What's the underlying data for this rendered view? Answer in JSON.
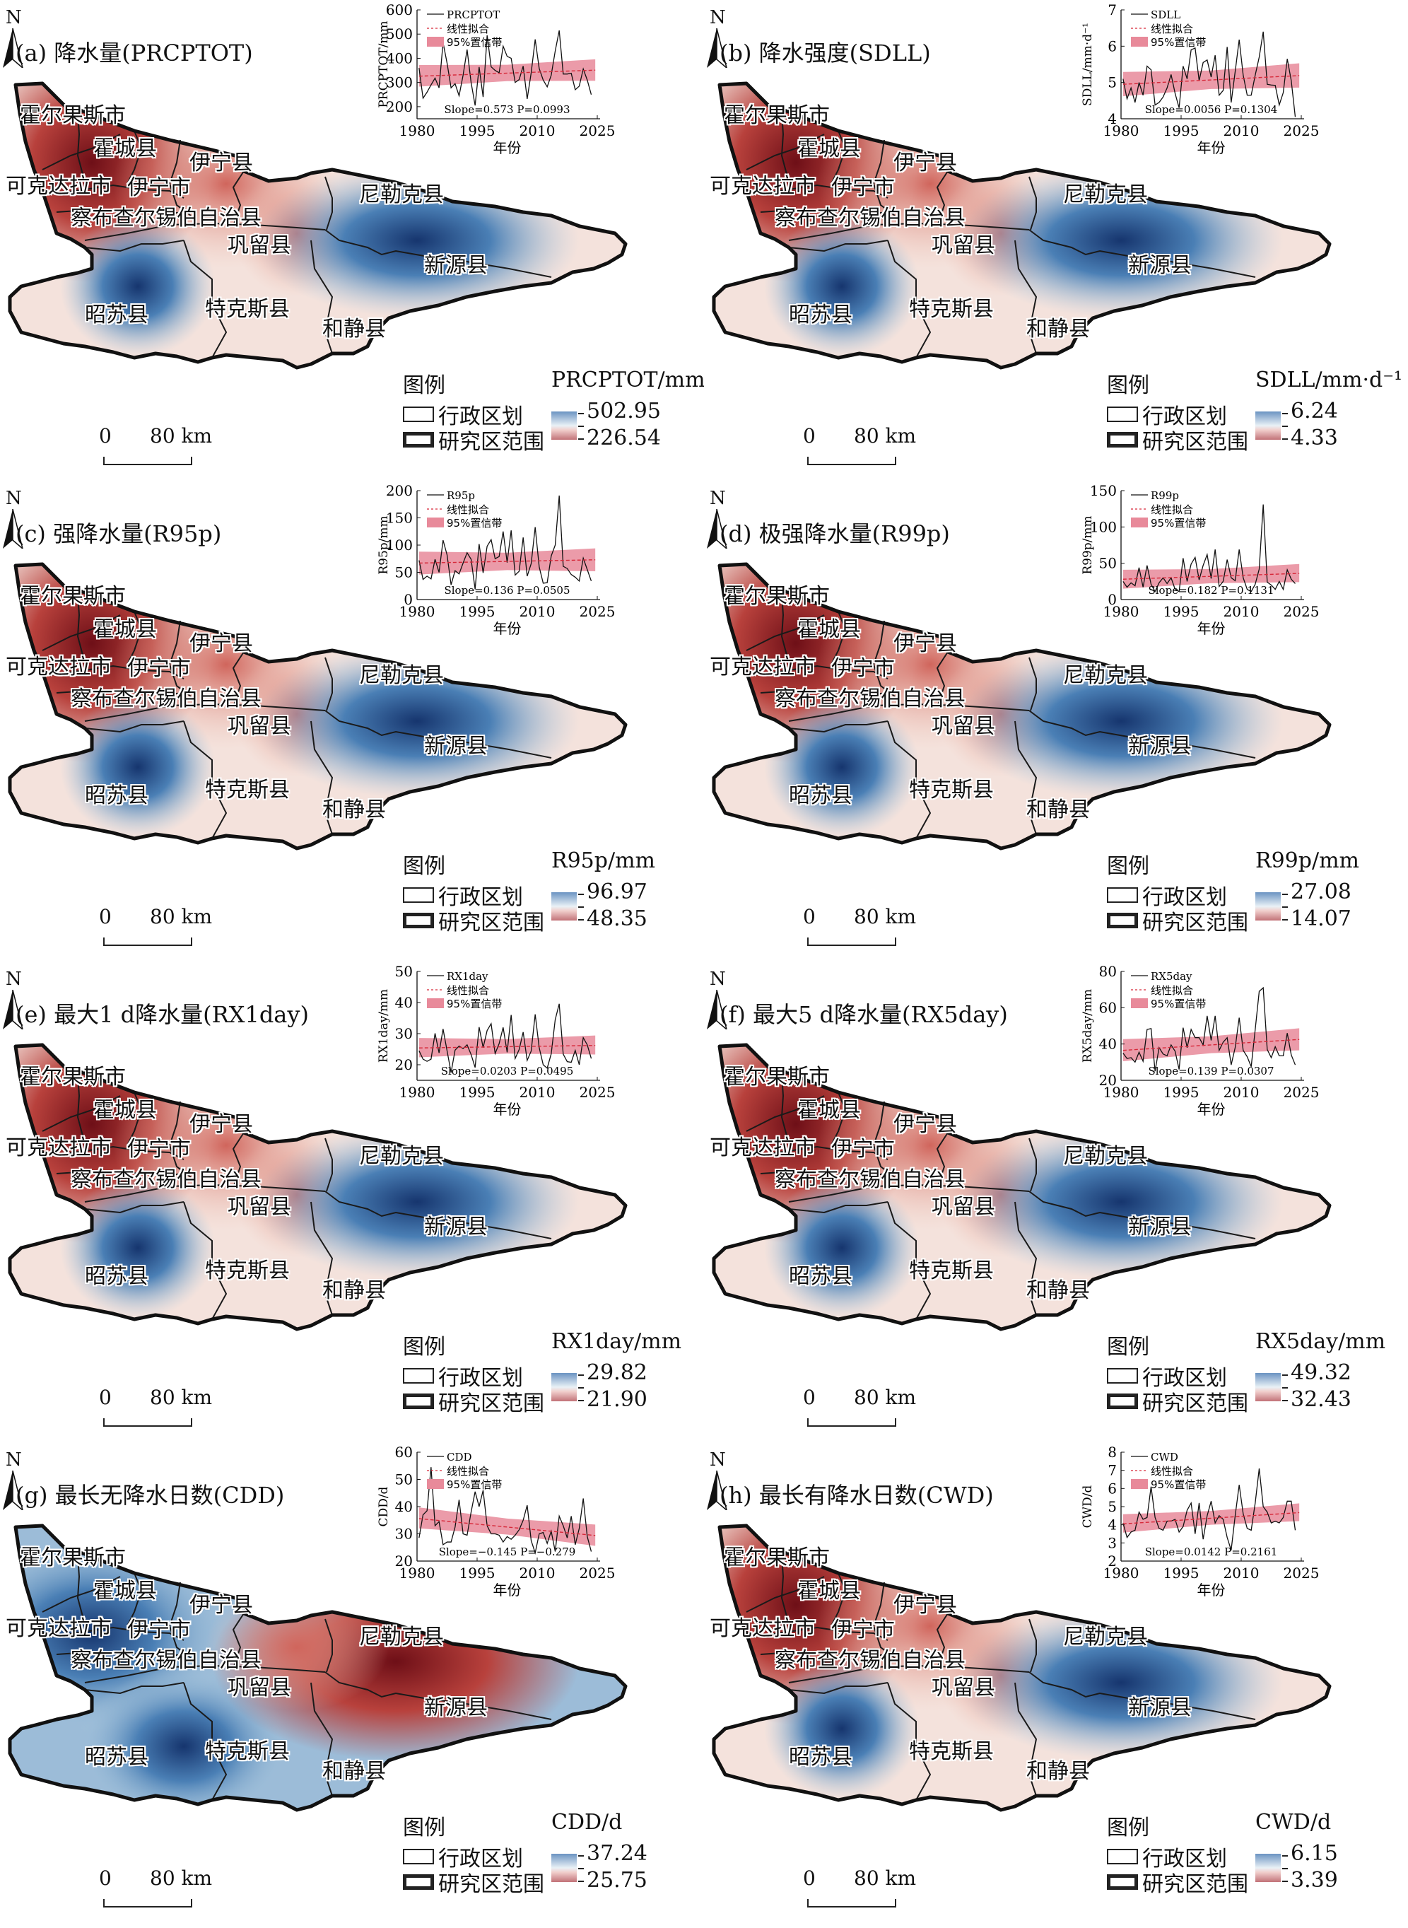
{
  "north_label": "N",
  "map_legend": {
    "title": "图例",
    "admin_boundary": "行政区划",
    "study_boundary": "研究区范围",
    "scale_zero": "0",
    "scale_km": "80 km"
  },
  "inset_legend": {
    "fit": "线性拟合",
    "band": "95%置信带",
    "xlabel": "年份"
  },
  "colors": {
    "high": "#1f4e8c",
    "low": "#8b1a1f",
    "band": "#e88a9a",
    "fit": "#d62839",
    "line": "#111111"
  },
  "counties": [
    "霍尔果斯市",
    "霍城县",
    "伊宁县",
    "可克达拉市",
    "伊宁市",
    "察布查尔锡伯自治县",
    "尼勒克县",
    "巩留县",
    "新源县",
    "昭苏县",
    "特克斯县",
    "和静县"
  ],
  "chart_data": [
    {
      "type": "line",
      "id": "a",
      "title": "(a) 降水量(PRCPTOT)",
      "series_name": "PRCPTOT",
      "ylabel": "PRCPTOT/mm",
      "xlabel": "年份",
      "ylim": [
        150,
        600
      ],
      "yticks": [
        200,
        300,
        400,
        500,
        600
      ],
      "xlim": [
        1980,
        2025
      ],
      "xticks": [
        1980,
        1995,
        2010,
        2025
      ],
      "annotation": "Slope=0.573 P=0.0993",
      "slope": "0.573",
      "p": "0.0993",
      "fit": [
        326,
        351
      ],
      "band_lo": [
        283,
        307
      ],
      "band_hi": [
        372,
        396
      ],
      "values": [
        360,
        235,
        260,
        290,
        318,
        278,
        465,
        380,
        278,
        295,
        245,
        330,
        436,
        300,
        205,
        364,
        240,
        495,
        365,
        350,
        340,
        450,
        408,
        400,
        300,
        312,
        368,
        232,
        340,
        478,
        358,
        310,
        282,
        330,
        430,
        515,
        335,
        335,
        338,
        270,
        285,
        356,
        310,
        250
      ],
      "legend_title": "PRCPTOT/mm",
      "legend_max": "502.95",
      "legend_min": "226.54",
      "hot": "nw"
    },
    {
      "type": "line",
      "id": "b",
      "title": "(b) 降水强度(SDLL)",
      "series_name": "SDLL",
      "ylabel": "SDLL/mm·d⁻¹",
      "xlabel": "年份",
      "ylim": [
        4,
        7
      ],
      "yticks": [
        4,
        5,
        6,
        7
      ],
      "xlim": [
        1980,
        2025
      ],
      "xticks": [
        1980,
        1995,
        2010,
        2025
      ],
      "annotation": "Slope=0.0056 P=0.1304",
      "slope": "0.0056",
      "p": "0.1304",
      "fit": [
        4.95,
        5.19
      ],
      "band_lo": [
        4.62,
        4.86
      ],
      "band_hi": [
        5.29,
        5.53
      ],
      "values": [
        5.1,
        4.55,
        4.85,
        4.45,
        5.0,
        4.65,
        5.45,
        5.35,
        4.38,
        4.45,
        4.6,
        4.85,
        5.22,
        4.7,
        4.3,
        5.45,
        5.1,
        5.9,
        5.95,
        5.05,
        5.55,
        5.62,
        5.15,
        5.75,
        4.65,
        4.78,
        5.98,
        4.45,
        5.3,
        6.18,
        5.2,
        4.65,
        4.65,
        5.2,
        5.7,
        6.4,
        4.95,
        4.93,
        4.92,
        4.38,
        4.72,
        5.65,
        5.05,
        4.05
      ],
      "legend_title": "SDLL/mm·d⁻¹",
      "legend_max": "6.24",
      "legend_min": "4.33",
      "hot": "nw"
    },
    {
      "type": "line",
      "id": "c",
      "title": "(c) 强降水量(R95p)",
      "series_name": "R95p",
      "ylabel": "R95p/mm",
      "xlabel": "年份",
      "ylim": [
        0,
        200
      ],
      "yticks": [
        0,
        50,
        100,
        150,
        200
      ],
      "xlim": [
        1980,
        2025
      ],
      "xticks": [
        1980,
        1995,
        2010,
        2025
      ],
      "annotation": "Slope=0.136 P=0.0505",
      "slope": "0.136",
      "p": "0.0505",
      "fit": [
        67,
        73
      ],
      "band_lo": [
        46,
        52
      ],
      "band_hi": [
        88,
        94
      ],
      "values": [
        72,
        37,
        43,
        38,
        74,
        50,
        109,
        82,
        27,
        53,
        47,
        67,
        86,
        74,
        19,
        102,
        49,
        98,
        110,
        75,
        79,
        125,
        68,
        127,
        45,
        52,
        114,
        43,
        66,
        133,
        60,
        30,
        31,
        80,
        100,
        191,
        61,
        57,
        46,
        41,
        34,
        76,
        55,
        34
      ],
      "legend_title": "R95p/mm",
      "legend_max": "96.97",
      "legend_min": "48.35",
      "hot": "nw"
    },
    {
      "type": "line",
      "id": "d",
      "title": "(d) 极强降水量(R99p)",
      "series_name": "R99p",
      "ylabel": "R99p/mm",
      "xlabel": "年份",
      "ylim": [
        0,
        150
      ],
      "yticks": [
        0,
        50,
        100,
        150
      ],
      "xlim": [
        1980,
        2025
      ],
      "xticks": [
        1980,
        1995,
        2010,
        2025
      ],
      "annotation": "Slope=0.182 P=0.1131",
      "slope": "0.182",
      "p": "0.1131",
      "fit": [
        28,
        36
      ],
      "band_lo": [
        15,
        24
      ],
      "band_hi": [
        41,
        49
      ],
      "values": [
        25,
        17,
        23,
        19,
        44,
        17,
        47,
        21,
        11,
        23,
        30,
        22,
        30,
        14,
        11,
        57,
        25,
        49,
        58,
        27,
        47,
        62,
        29,
        69,
        18,
        25,
        55,
        30,
        26,
        69,
        30,
        14,
        11,
        21,
        42,
        131,
        24,
        20,
        14,
        25,
        14,
        41,
        28,
        22
      ],
      "legend_title": "R99p/mm",
      "legend_max": "27.08",
      "legend_min": "14.07",
      "hot": "nw"
    },
    {
      "type": "line",
      "id": "e",
      "title": "(e) 最大1 d降水量(RX1day)",
      "series_name": "RX1day",
      "ylabel": "RX1day/mm",
      "xlabel": "年份",
      "ylim": [
        15,
        50
      ],
      "yticks": [
        20,
        30,
        40,
        50
      ],
      "xlim": [
        1980,
        2025
      ],
      "xticks": [
        1980,
        1995,
        2010,
        2025
      ],
      "annotation": "Slope=0.0203 P=0.0495",
      "slope": "0.0203",
      "p": "0.0495",
      "fit": [
        25.4,
        26.2
      ],
      "band_lo": [
        22.4,
        23.3
      ],
      "band_hi": [
        28.6,
        29.4
      ],
      "values": [
        24.5,
        21.8,
        21.1,
        21.8,
        30.1,
        23.8,
        31.5,
        24.5,
        17.5,
        24.7,
        26,
        25.2,
        26.4,
        23.3,
        19.1,
        32.1,
        25.5,
        31,
        33.2,
        23.6,
        26.8,
        32,
        24,
        36,
        22,
        24.9,
        30.5,
        21.4,
        24.4,
        36.2,
        25.5,
        20,
        18.9,
        23.5,
        34.5,
        39.6,
        23.4,
        21,
        20.8,
        24.6,
        20,
        28.7,
        26.4,
        22
      ],
      "legend_title": "RX1day/mm",
      "legend_max": "29.82",
      "legend_min": "21.90",
      "hot": "nw"
    },
    {
      "type": "line",
      "id": "f",
      "title": "(f) 最大5 d降水量(RX5day)",
      "series_name": "RX5day",
      "ylabel": "RX5day/mm",
      "xlabel": "年份",
      "ylim": [
        20,
        80
      ],
      "yticks": [
        20,
        40,
        60,
        80
      ],
      "xlim": [
        1980,
        2025
      ],
      "xticks": [
        1980,
        1995,
        2010,
        2025
      ],
      "annotation": "Slope=0.139 P=0.0307",
      "slope": "0.139",
      "p": "0.0307",
      "fit": [
        36.5,
        42.5
      ],
      "band_lo": [
        30.5,
        36.5
      ],
      "band_hi": [
        42.7,
        48.7
      ],
      "values": [
        35,
        32,
        32.5,
        30,
        35.5,
        30.5,
        48,
        48.5,
        25,
        38,
        34.5,
        33.5,
        39.5,
        36,
        26,
        49,
        38,
        48,
        43.5,
        43.5,
        39.5,
        55.5,
        42,
        55.5,
        36.5,
        41,
        43.5,
        28.5,
        38,
        54.5,
        36.5,
        33,
        27.5,
        48,
        69,
        71,
        37,
        32.5,
        38.5,
        33.5,
        33.5,
        46,
        34,
        28.5
      ],
      "legend_title": "RX5day/mm",
      "legend_max": "49.32",
      "legend_min": "32.43",
      "hot": "nw"
    },
    {
      "type": "line",
      "id": "g",
      "title": "(g) 最长无降水日数(CDD)",
      "series_name": "CDD",
      "ylabel": "CDD/d",
      "xlabel": "年份",
      "ylim": [
        20,
        60
      ],
      "yticks": [
        20,
        30,
        40,
        50,
        60
      ],
      "xlim": [
        1980,
        2025
      ],
      "xticks": [
        1980,
        1995,
        2010,
        2025
      ],
      "annotation": "Slope=−0.145 P=−0.279",
      "slope": "−0.145",
      "p": "−0.279",
      "fit": [
        35.6,
        29.4
      ],
      "band_lo": [
        32,
        25.6
      ],
      "band_hi": [
        39.7,
        33.4
      ],
      "values": [
        28.5,
        37,
        38.5,
        54.5,
        33,
        34.5,
        26,
        27,
        27,
        32.5,
        42.5,
        30,
        29.5,
        38,
        45.5,
        40,
        46,
        33,
        30,
        30,
        29.5,
        27,
        29,
        28,
        29.5,
        31.5,
        35,
        40.5,
        27.5,
        23,
        30,
        30.5,
        26.5,
        31,
        23.5,
        36.5,
        33,
        28.5,
        36.5,
        26,
        32,
        43,
        29,
        23.5
      ],
      "legend_title": "CDD/d",
      "legend_max": "37.24",
      "legend_min": "25.75",
      "hot": "east"
    },
    {
      "type": "line",
      "id": "h",
      "title": "(h) 最长有降水日数(CWD)",
      "series_name": "CWD",
      "ylabel": "CWD/d",
      "xlabel": "年份",
      "ylim": [
        2,
        8
      ],
      "yticks": [
        2,
        3,
        4,
        5,
        6,
        7,
        8
      ],
      "xlim": [
        1980,
        2025
      ],
      "xticks": [
        1980,
        1995,
        2010,
        2025
      ],
      "annotation": "Slope=0.0142 P=0.2161",
      "slope": "0.0142",
      "p": "0.2161",
      "fit": [
        4.05,
        4.67
      ],
      "band_lo": [
        3.57,
        4.2
      ],
      "band_hi": [
        4.58,
        5.18
      ],
      "values": [
        4.1,
        3.3,
        3.6,
        3.7,
        4.7,
        4.3,
        4.4,
        6.1,
        4.4,
        3.8,
        3.7,
        4.2,
        4.2,
        4.3,
        3.6,
        3.9,
        4.8,
        5.2,
        3.5,
        5.2,
        3.2,
        4.5,
        5.3,
        4.1,
        4.5,
        4.3,
        3.3,
        2.6,
        4.5,
        6.2,
        4.6,
        3.8,
        3.7,
        5.2,
        7.1,
        5,
        4.7,
        4.1,
        4.2,
        4.1,
        4.4,
        5.3,
        5.3,
        3.7
      ],
      "legend_title": "CWD/d",
      "legend_max": "6.15",
      "legend_min": "3.39",
      "hot": "nw"
    }
  ]
}
